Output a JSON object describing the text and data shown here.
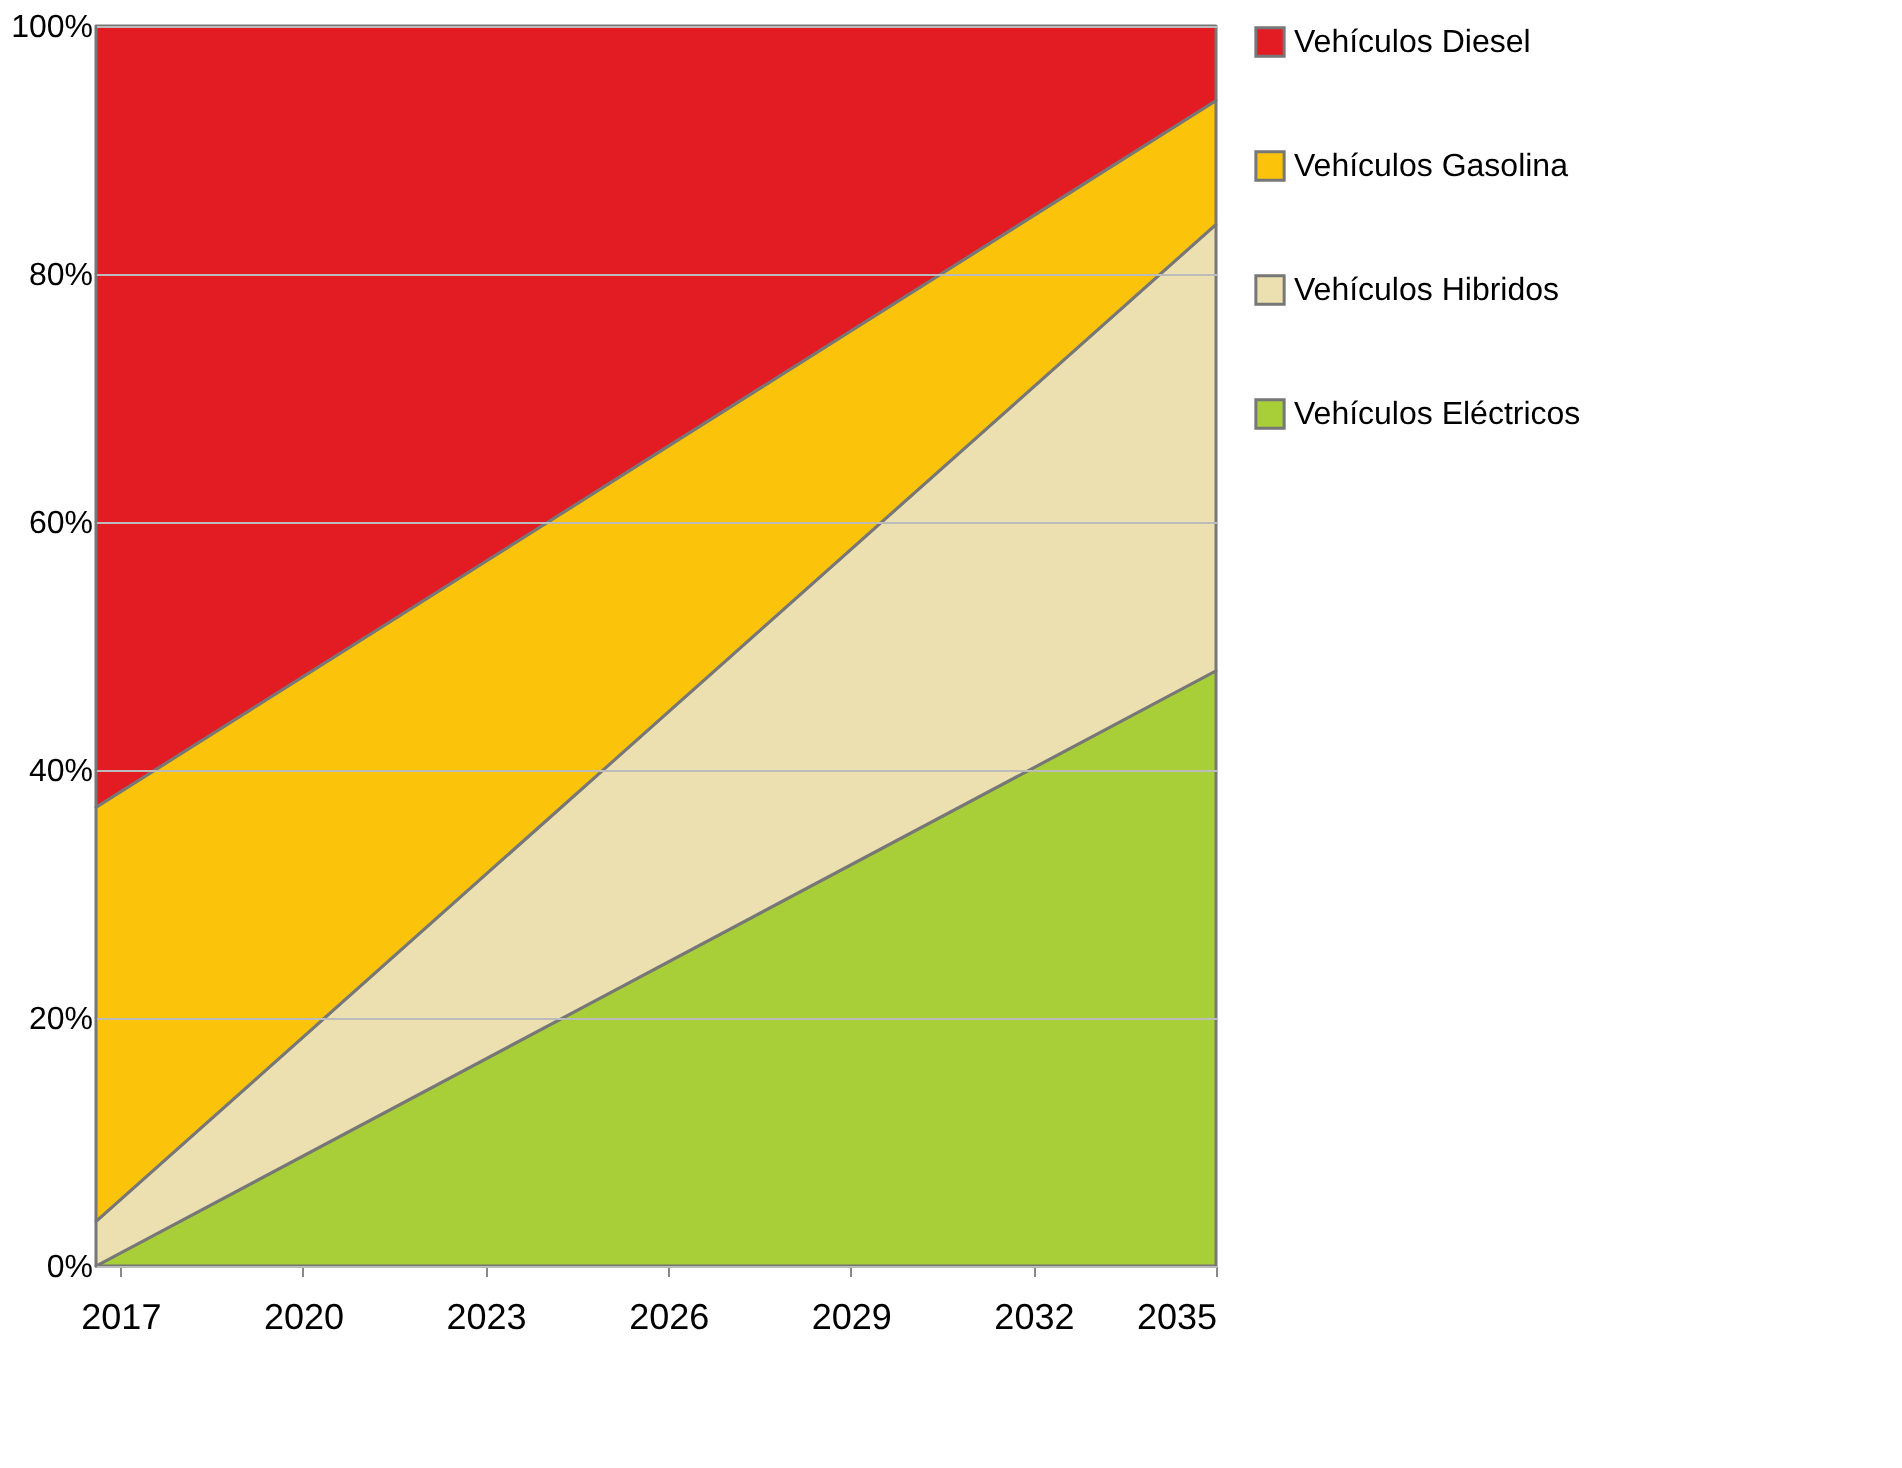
{
  "chart_data": {
    "type": "area",
    "stacked": true,
    "x": [
      2016.6,
      2035
    ],
    "series": [
      {
        "name": "Vehículos Eléctricos",
        "color": "#a8cf38",
        "values": [
          0,
          48
        ]
      },
      {
        "name": "Vehículos Hibridos",
        "color": "#ede0b0",
        "values": [
          3.6,
          36
        ]
      },
      {
        "name": "Vehículos Gasolina",
        "color": "#fbc30a",
        "values": [
          33.4,
          10
        ]
      },
      {
        "name": "Vehículos Diesel",
        "color": "#e31b23",
        "values": [
          63,
          6
        ]
      }
    ],
    "xlim": [
      2016.6,
      2035
    ],
    "xticks": [
      2017,
      2020,
      2023,
      2026,
      2029,
      2032,
      2035
    ],
    "ylim": [
      0,
      100
    ],
    "yticks": [
      {
        "value": 0,
        "label": "0%"
      },
      {
        "value": 20,
        "label": "20%"
      },
      {
        "value": 40,
        "label": "40%"
      },
      {
        "value": 60,
        "label": "60%"
      },
      {
        "value": 80,
        "label": "80%"
      },
      {
        "value": 100,
        "label": "100%"
      }
    ],
    "grid": "y",
    "legend": "right"
  }
}
